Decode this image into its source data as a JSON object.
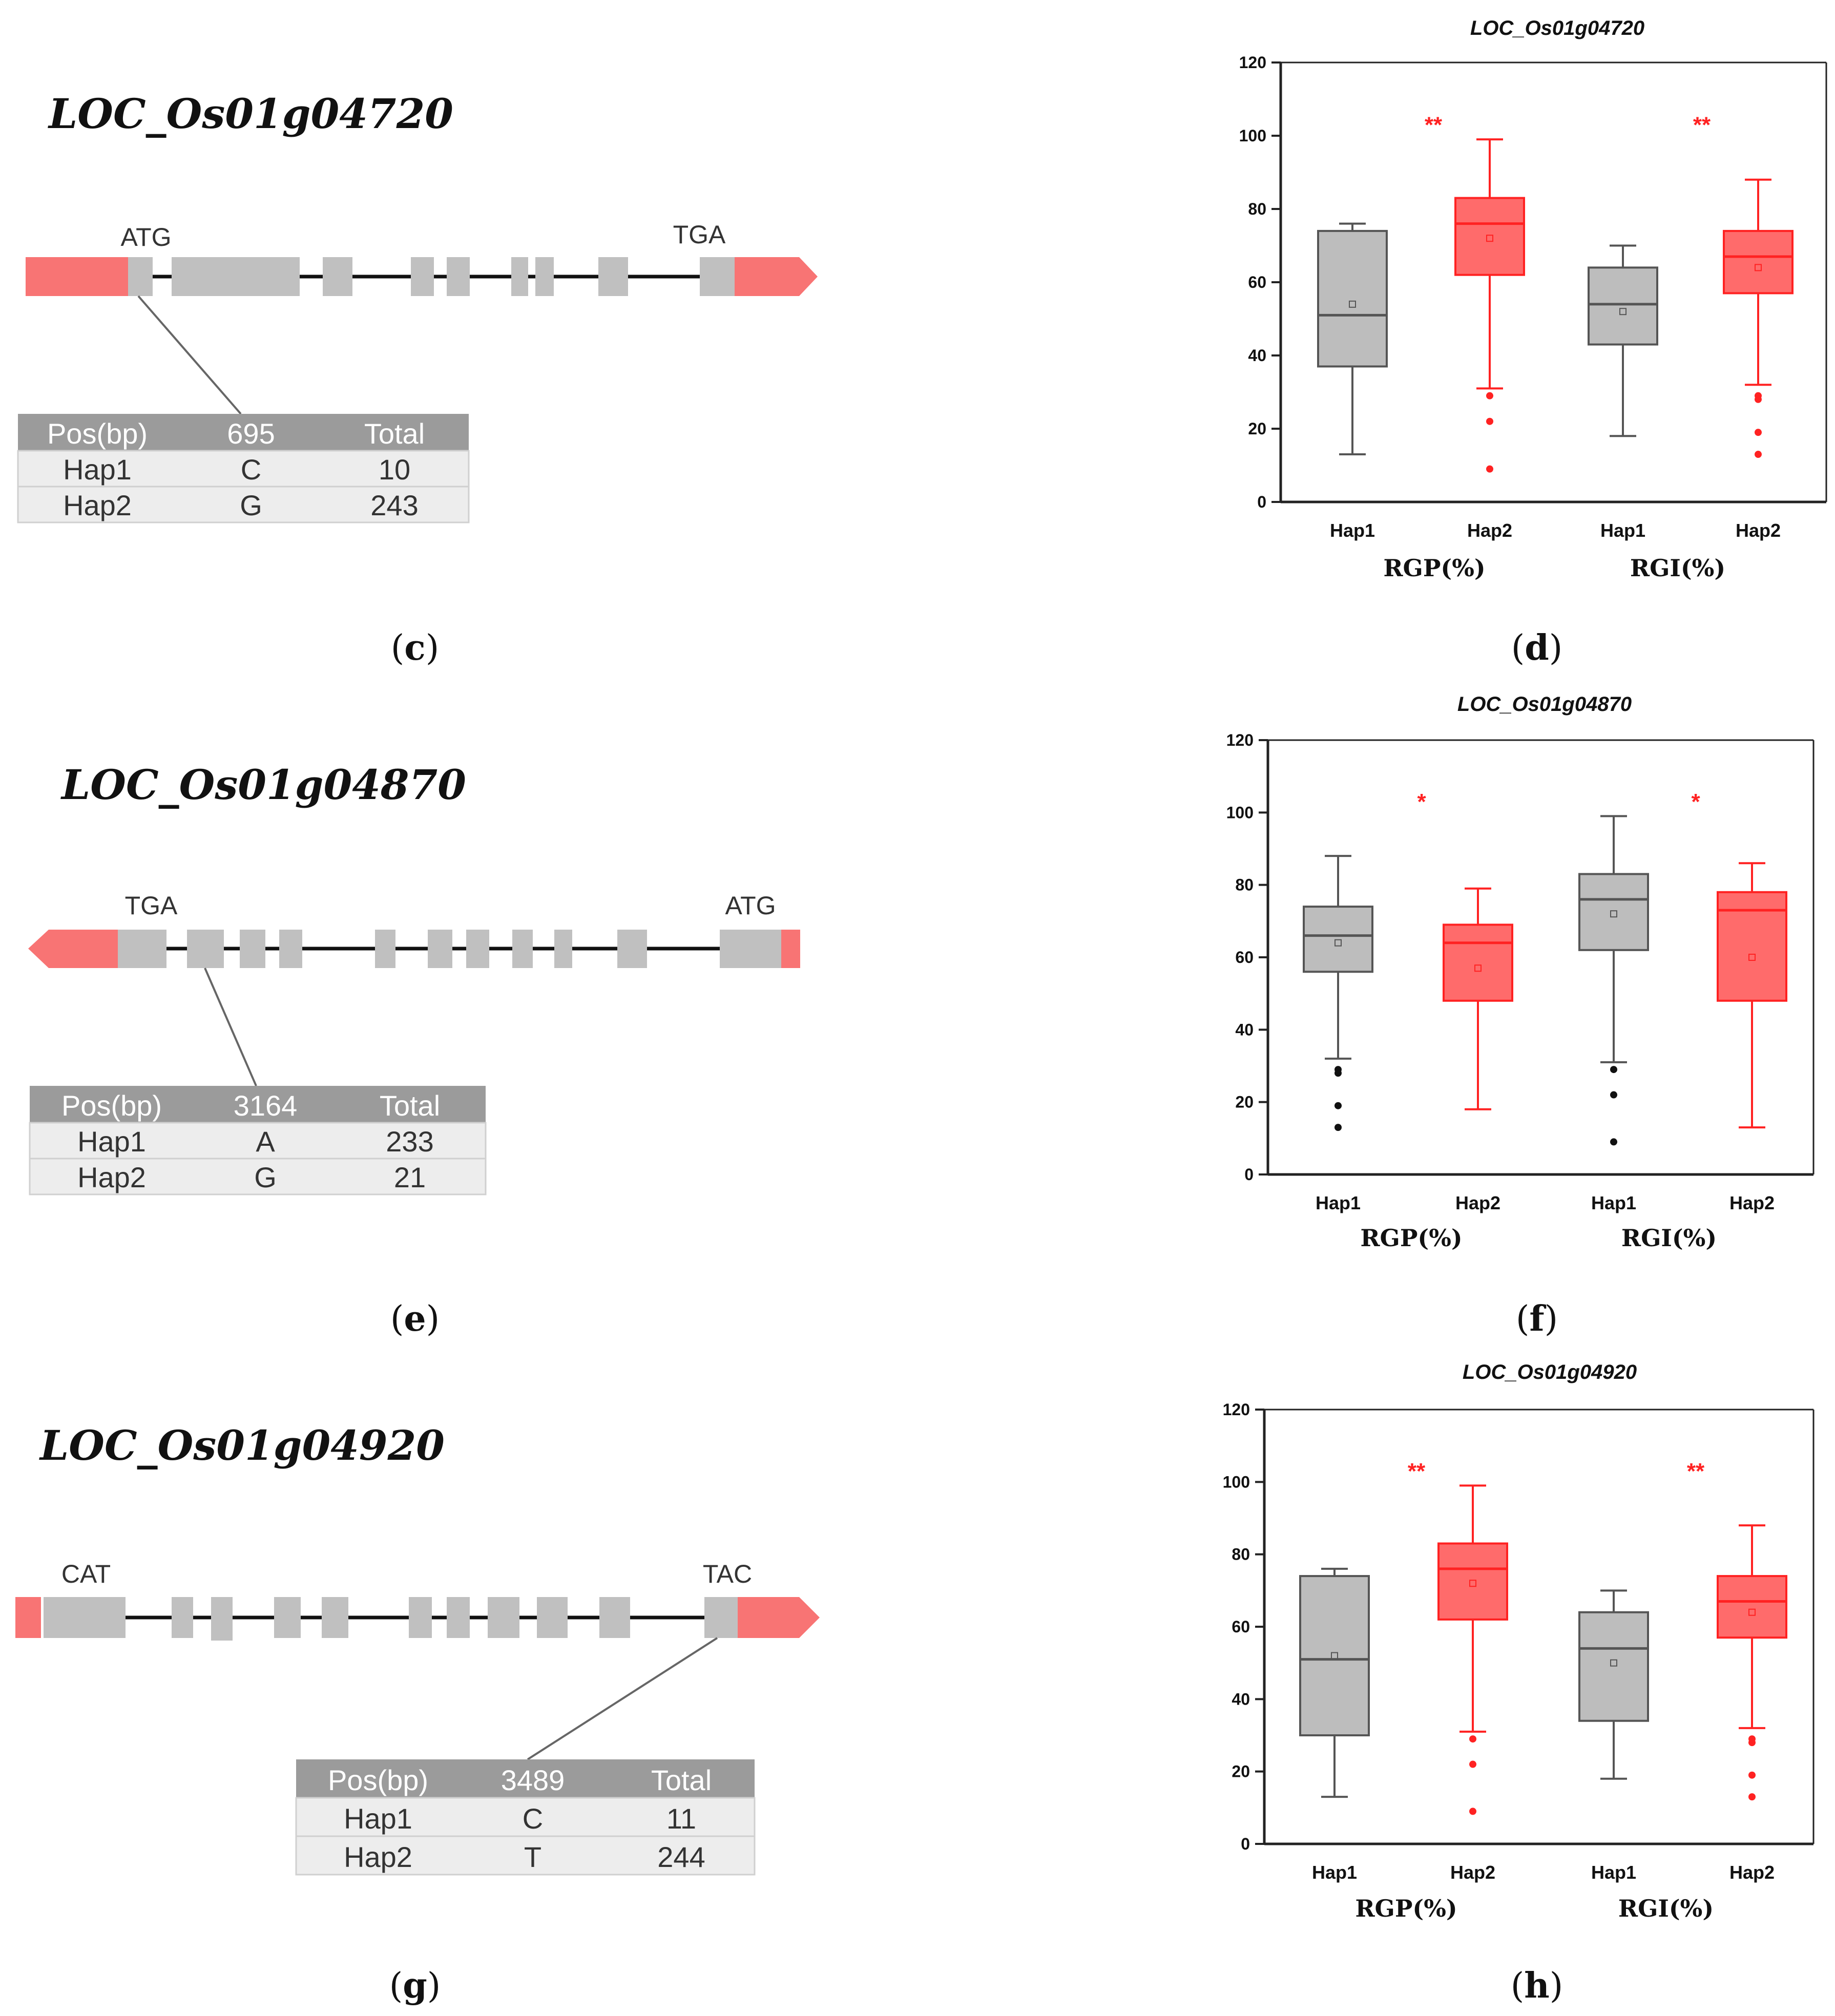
{
  "colors": {
    "hap1": "#555555",
    "hap1_fill": "#bdbdbd",
    "hap2": "#ff2222",
    "hap2_fill": "#ff6b6b",
    "utr": "#f87474",
    "exon": "#c0c0c0",
    "table_head": "#9b9b9b"
  },
  "gene_panels": [
    {
      "title": "LOC_Os01g04720",
      "label": "c",
      "codon_left": "ATG",
      "codon_right": "TGA",
      "arrow_direction": "right",
      "table": {
        "headers": [
          "Pos(bp)",
          "695",
          "Total"
        ],
        "rows": [
          [
            "Hap1",
            "C",
            "10"
          ],
          [
            "Hap2",
            "G",
            "243"
          ]
        ]
      }
    },
    {
      "title": "LOC_Os01g04870",
      "label": "e",
      "codon_left": "TGA",
      "codon_right": "ATG",
      "arrow_direction": "left",
      "table": {
        "headers": [
          "Pos(bp)",
          "3164",
          "Total"
        ],
        "rows": [
          [
            "Hap1",
            "A",
            "233"
          ],
          [
            "Hap2",
            "G",
            "21"
          ]
        ]
      }
    },
    {
      "title": "LOC_Os01g04920",
      "label": "g",
      "codon_left": "CAT",
      "codon_right": "TAC",
      "arrow_direction": "right",
      "table": {
        "headers": [
          "Pos(bp)",
          "3489",
          "Total"
        ],
        "rows": [
          [
            "Hap1",
            "C",
            "11"
          ],
          [
            "Hap2",
            "T",
            "244"
          ]
        ]
      }
    }
  ],
  "chart_data": [
    {
      "type": "box",
      "label": "d",
      "title": "LOC_Os01g04720",
      "ylim": [
        0,
        120
      ],
      "yticks": [
        0,
        20,
        40,
        60,
        80,
        100,
        120
      ],
      "groups": [
        "RGP(%)",
        "RGI(%)"
      ],
      "significance": [
        "**",
        "**"
      ],
      "boxes": [
        {
          "group": "RGP(%)",
          "hap": "Hap1",
          "min": 13,
          "q1": 37,
          "median": 51,
          "q3": 74,
          "max": 76,
          "mean": 54,
          "outliers": []
        },
        {
          "group": "RGP(%)",
          "hap": "Hap2",
          "min": 31,
          "q1": 62,
          "median": 76,
          "q3": 83,
          "max": 99,
          "mean": 72,
          "outliers": [
            29,
            22,
            9
          ]
        },
        {
          "group": "RGI(%)",
          "hap": "Hap1",
          "min": 18,
          "q1": 43,
          "median": 54,
          "q3": 64,
          "max": 70,
          "mean": 52,
          "outliers": []
        },
        {
          "group": "RGI(%)",
          "hap": "Hap2",
          "min": 32,
          "q1": 57,
          "median": 67,
          "q3": 74,
          "max": 88,
          "mean": 64,
          "outliers": [
            29,
            28,
            19,
            13
          ]
        }
      ]
    },
    {
      "type": "box",
      "label": "f",
      "title": "LOC_Os01g04870",
      "ylim": [
        0,
        120
      ],
      "yticks": [
        0,
        20,
        40,
        60,
        80,
        100,
        120
      ],
      "groups": [
        "RGP(%)",
        "RGI(%)"
      ],
      "significance": [
        "*",
        "*"
      ],
      "boxes": [
        {
          "group": "RGP(%)",
          "hap": "Hap1",
          "min": 32,
          "q1": 56,
          "median": 66,
          "q3": 74,
          "max": 88,
          "mean": 64,
          "outliers": [
            29,
            28,
            19,
            13
          ]
        },
        {
          "group": "RGP(%)",
          "hap": "Hap2",
          "min": 18,
          "q1": 48,
          "median": 64,
          "q3": 69,
          "max": 79,
          "mean": 57,
          "outliers": []
        },
        {
          "group": "RGI(%)",
          "hap": "Hap1",
          "min": 31,
          "q1": 62,
          "median": 76,
          "q3": 83,
          "max": 99,
          "mean": 72,
          "outliers": [
            29,
            22,
            9
          ]
        },
        {
          "group": "RGI(%)",
          "hap": "Hap2",
          "min": 13,
          "q1": 48,
          "median": 73,
          "q3": 78,
          "max": 86,
          "mean": 60,
          "outliers": []
        }
      ]
    },
    {
      "type": "box",
      "label": "h",
      "title": "LOC_Os01g04920",
      "ylim": [
        0,
        120
      ],
      "yticks": [
        0,
        20,
        40,
        60,
        80,
        100,
        120
      ],
      "groups": [
        "RGP(%)",
        "RGI(%)"
      ],
      "significance": [
        "**",
        "**"
      ],
      "boxes": [
        {
          "group": "RGP(%)",
          "hap": "Hap1",
          "min": 13,
          "q1": 30,
          "median": 51,
          "q3": 74,
          "max": 76,
          "mean": 52,
          "outliers": []
        },
        {
          "group": "RGP(%)",
          "hap": "Hap2",
          "min": 31,
          "q1": 62,
          "median": 76,
          "q3": 83,
          "max": 99,
          "mean": 72,
          "outliers": [
            29,
            22,
            9
          ]
        },
        {
          "group": "RGI(%)",
          "hap": "Hap1",
          "min": 18,
          "q1": 34,
          "median": 54,
          "q3": 64,
          "max": 70,
          "mean": 50,
          "outliers": []
        },
        {
          "group": "RGI(%)",
          "hap": "Hap2",
          "min": 32,
          "q1": 57,
          "median": 67,
          "q3": 74,
          "max": 88,
          "mean": 64,
          "outliers": [
            29,
            28,
            19,
            13
          ]
        }
      ]
    }
  ]
}
